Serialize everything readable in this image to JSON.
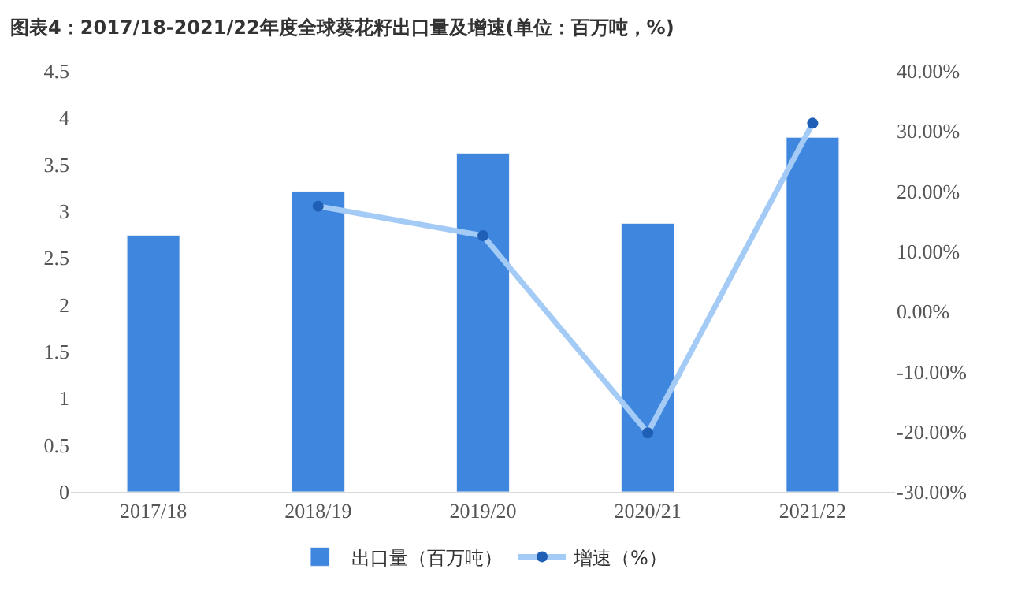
{
  "chart_data": {
    "type": "bar",
    "title": "图表4：2017/18-2021/22年度全球葵花籽出口量及增速(单位：百万吨，%)",
    "categories": [
      "2017/18",
      "2018/19",
      "2019/20",
      "2020/21",
      "2021/22"
    ],
    "series": [
      {
        "name": "出口量（百万吨）",
        "color": "#3f86de",
        "values": [
          2.74,
          3.21,
          3.62,
          2.87,
          3.79
        ]
      },
      {
        "name": "增速（%）",
        "type": "line",
        "axis": "y2",
        "color": "#a4cbf5",
        "colors": [
          "#1f5fb5",
          "#1f5fb5",
          "#1f5fb5",
          "#1f5fb5",
          "#1f5fb5"
        ],
        "marker": "circle",
        "values": [
          null,
          17.5,
          12.6,
          -20.2,
          31.3
        ]
      }
    ],
    "ylim": [
      0,
      4.5
    ],
    "yticks": [
      0,
      0.5,
      1,
      1.5,
      2,
      2.5,
      3,
      3.5,
      4,
      4.5
    ],
    "y2lim": [
      -30,
      40
    ],
    "y2ticks": [
      {
        "value": -30,
        "label": "-30.00%"
      },
      {
        "value": -20,
        "label": "-20.00%"
      },
      {
        "value": -10,
        "label": "-10.00%"
      },
      {
        "value": 0,
        "label": "0.00%"
      },
      {
        "value": 10,
        "label": "10.00%"
      },
      {
        "value": 20,
        "label": "20.00%"
      },
      {
        "value": 30,
        "label": "30.00%"
      },
      {
        "value": 40,
        "label": "40.00%"
      }
    ],
    "legend": "bottom"
  }
}
